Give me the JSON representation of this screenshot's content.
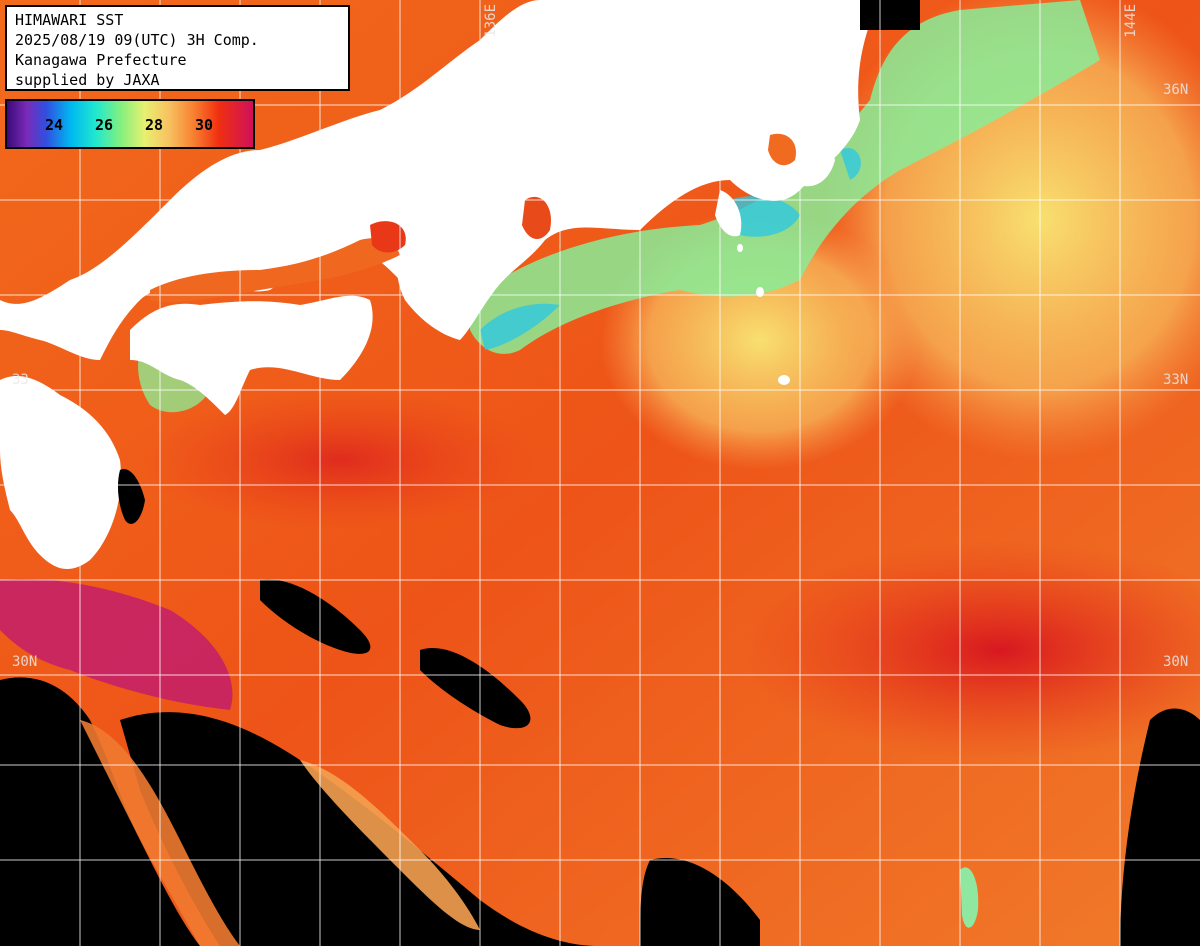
{
  "info": {
    "line1": "HIMAWARI SST",
    "line2": "2025/08/19 09(UTC) 3H Comp.",
    "line3": "Kanagawa Prefecture",
    "line4": "supplied by JAXA"
  },
  "legend": {
    "ticks": [
      "24",
      "26",
      "28",
      "30"
    ],
    "unit_colors": [
      "#3a0a78",
      "#00b8f0",
      "#80f080",
      "#e8f070",
      "#f88030",
      "#d0105a"
    ]
  },
  "grid_labels": {
    "lon_136": "136E",
    "lon_144": "144E",
    "lat_36": "36N",
    "lat_33_right": "33N",
    "lat_33_left": "33",
    "lat_30_left": "30N",
    "lat_30_right": "30N"
  },
  "colors": {
    "land": "#ffffff",
    "cloud": "#000000",
    "warm_ocean": "#f06018",
    "hot_ocean": "#d01828",
    "cool_ocean": "#80f090",
    "cold_ocean": "#20c0e8"
  }
}
